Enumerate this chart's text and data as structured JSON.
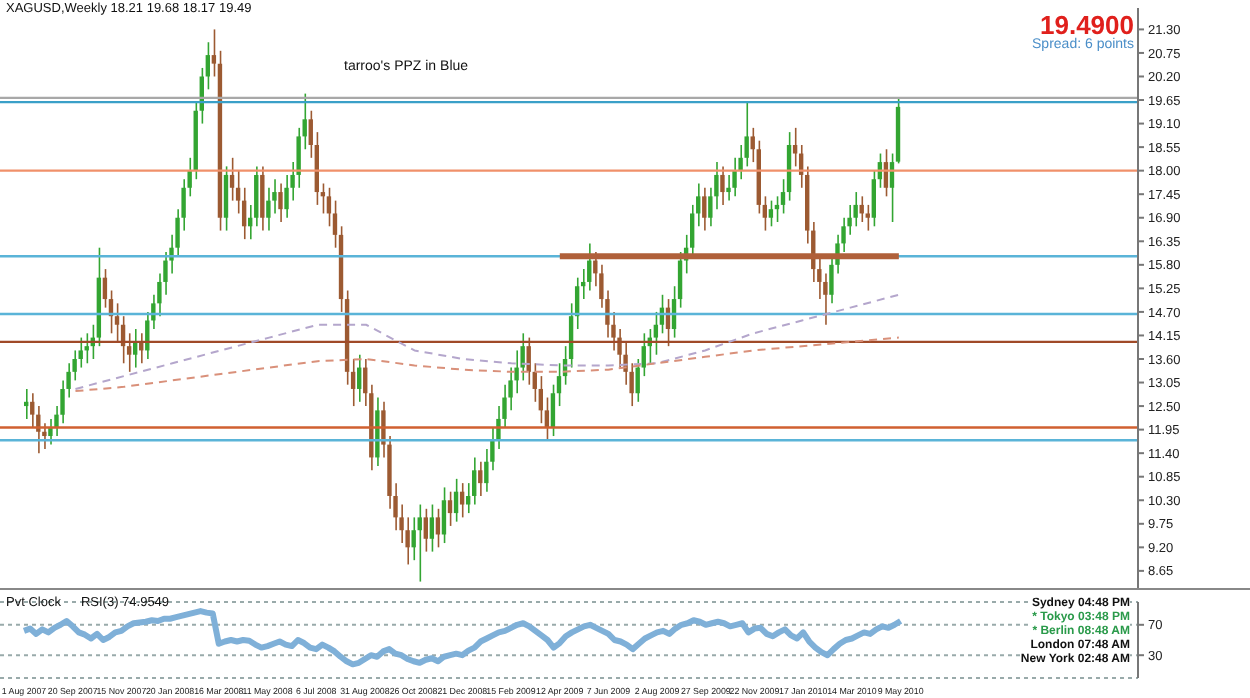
{
  "chart_data": [
    {
      "type": "candlestick",
      "title": "XAGUSD,Weekly  18.21 19.68 18.17 19.49",
      "tick_labels": "y",
      "annotations": [
        "tarroo's PPZ in Blue",
        "19.4900",
        "Spread: 6 points"
      ],
      "categories": [
        "1 Aug 2007",
        null,
        null,
        null,
        null,
        null,
        null,
        null,
        "20 Sep 2007",
        null,
        null,
        null,
        null,
        null,
        null,
        null,
        "15 Nov 2007",
        null,
        null,
        null,
        null,
        null,
        null,
        null,
        "20 Jan 2008",
        null,
        null,
        null,
        null,
        null,
        null,
        null,
        "16 Mar 2008",
        null,
        null,
        null,
        null,
        null,
        null,
        null,
        "11 May 2008",
        null,
        null,
        null,
        null,
        null,
        null,
        null,
        "6 Jul 2008",
        null,
        null,
        null,
        null,
        null,
        null,
        null,
        "31 Aug 2008",
        null,
        null,
        null,
        null,
        null,
        null,
        null,
        "26 Oct 2008",
        null,
        null,
        null,
        null,
        null,
        null,
        null,
        "21 Dec 2008",
        null,
        null,
        null,
        null,
        null,
        null,
        null,
        "15 Feb 2009",
        null,
        null,
        null,
        null,
        null,
        null,
        null,
        "12 Apr 2009",
        null,
        null,
        null,
        null,
        null,
        null,
        null,
        "7 Jun 2009",
        null,
        null,
        null,
        null,
        null,
        null,
        null,
        "2 Aug 2009",
        null,
        null,
        null,
        null,
        null,
        null,
        null,
        "27 Sep 2009",
        null,
        null,
        null,
        null,
        null,
        null,
        null,
        "22 Nov 2009",
        null,
        null,
        null,
        null,
        null,
        null,
        null,
        "17 Jan 2010",
        null,
        null,
        null,
        null,
        null,
        null,
        null,
        "14 Mar 2010",
        null,
        null,
        null,
        null,
        null,
        null,
        null,
        "9 May 2010",
        null,
        null,
        null,
        null,
        null,
        null,
        null,
        null,
        null,
        null,
        null,
        null,
        null,
        null,
        null,
        null,
        null,
        null,
        null,
        null,
        null,
        null,
        null,
        null,
        null,
        null,
        null,
        null,
        null,
        null,
        null,
        null,
        null,
        null,
        null,
        null,
        null,
        null,
        null
      ],
      "ohlc": [
        [
          12.5,
          12.9,
          12.2,
          12.6
        ],
        [
          12.6,
          12.8,
          12.0,
          12.3
        ],
        [
          12.3,
          12.5,
          11.4,
          11.9
        ],
        [
          11.9,
          12.1,
          11.5,
          11.8
        ],
        [
          11.8,
          12.2,
          11.6,
          12.0
        ],
        [
          12.0,
          12.5,
          11.8,
          12.3
        ],
        [
          12.3,
          13.1,
          12.1,
          12.9
        ],
        [
          12.9,
          13.5,
          12.7,
          13.3
        ],
        [
          13.3,
          13.8,
          13.1,
          13.6
        ],
        [
          13.6,
          14.1,
          13.4,
          13.8
        ],
        [
          13.8,
          14.2,
          13.5,
          13.9
        ],
        [
          13.9,
          14.4,
          13.6,
          14.1
        ],
        [
          14.1,
          16.2,
          13.9,
          15.5
        ],
        [
          15.5,
          15.7,
          14.8,
          15.0
        ],
        [
          15.0,
          15.2,
          14.2,
          14.6
        ],
        [
          14.6,
          14.9,
          14.0,
          14.4
        ],
        [
          14.4,
          14.6,
          13.5,
          13.9
        ],
        [
          13.9,
          14.2,
          13.3,
          13.7
        ],
        [
          13.7,
          14.3,
          13.4,
          14.0
        ],
        [
          14.0,
          14.2,
          13.5,
          13.8
        ],
        [
          13.8,
          14.7,
          13.6,
          14.5
        ],
        [
          14.5,
          15.1,
          14.3,
          14.9
        ],
        [
          14.9,
          15.6,
          14.6,
          15.4
        ],
        [
          15.4,
          16.1,
          15.1,
          15.9
        ],
        [
          15.9,
          16.5,
          15.6,
          16.2
        ],
        [
          16.2,
          17.1,
          16.0,
          16.9
        ],
        [
          16.9,
          17.8,
          16.6,
          17.6
        ],
        [
          17.6,
          18.3,
          17.4,
          18.0
        ],
        [
          18.0,
          19.6,
          17.8,
          19.4
        ],
        [
          19.4,
          20.4,
          19.1,
          20.2
        ],
        [
          20.2,
          21.0,
          19.9,
          20.7
        ],
        [
          20.7,
          21.3,
          20.2,
          20.5
        ],
        [
          20.5,
          20.8,
          16.6,
          16.9
        ],
        [
          16.9,
          18.1,
          16.6,
          17.9
        ],
        [
          17.9,
          18.3,
          17.3,
          17.6
        ],
        [
          17.6,
          18.0,
          17.0,
          17.3
        ],
        [
          17.3,
          17.6,
          16.4,
          16.7
        ],
        [
          16.7,
          17.2,
          16.4,
          16.9
        ],
        [
          16.9,
          18.1,
          16.7,
          17.9
        ],
        [
          17.9,
          18.1,
          16.6,
          16.9
        ],
        [
          16.9,
          17.6,
          16.6,
          17.3
        ],
        [
          17.3,
          17.8,
          17.0,
          17.5
        ],
        [
          17.5,
          17.7,
          16.8,
          17.1
        ],
        [
          17.1,
          17.9,
          16.9,
          17.6
        ],
        [
          17.6,
          18.2,
          17.3,
          17.9
        ],
        [
          17.9,
          19.0,
          17.6,
          18.8
        ],
        [
          18.8,
          19.8,
          18.5,
          19.2
        ],
        [
          19.2,
          19.4,
          18.3,
          18.6
        ],
        [
          18.6,
          18.9,
          17.2,
          17.5
        ],
        [
          17.5,
          17.7,
          17.0,
          17.4
        ],
        [
          17.4,
          17.6,
          16.7,
          17.0
        ],
        [
          17.0,
          17.3,
          16.2,
          16.5
        ],
        [
          16.5,
          16.7,
          14.7,
          15.0
        ],
        [
          15.0,
          15.2,
          13.0,
          13.3
        ],
        [
          13.3,
          13.6,
          12.5,
          12.9
        ],
        [
          12.9,
          13.7,
          12.6,
          13.4
        ],
        [
          13.4,
          13.6,
          12.5,
          12.8
        ],
        [
          12.8,
          13.0,
          11.0,
          11.3
        ],
        [
          11.3,
          12.7,
          11.1,
          12.4
        ],
        [
          12.4,
          12.6,
          11.3,
          11.6
        ],
        [
          11.6,
          11.8,
          10.1,
          10.4
        ],
        [
          10.4,
          10.7,
          9.6,
          9.9
        ],
        [
          9.9,
          10.2,
          9.3,
          9.6
        ],
        [
          9.6,
          9.9,
          8.8,
          9.2
        ],
        [
          9.2,
          9.9,
          8.9,
          9.6
        ],
        [
          9.6,
          10.2,
          8.4,
          9.9
        ],
        [
          9.9,
          10.1,
          9.1,
          9.4
        ],
        [
          9.4,
          10.2,
          9.1,
          9.9
        ],
        [
          9.9,
          10.1,
          9.2,
          9.5
        ],
        [
          9.5,
          10.6,
          9.3,
          10.3
        ],
        [
          10.3,
          10.5,
          9.7,
          10.0
        ],
        [
          10.0,
          10.8,
          9.8,
          10.5
        ],
        [
          10.5,
          10.7,
          9.9,
          10.2
        ],
        [
          10.2,
          10.7,
          10.0,
          10.4
        ],
        [
          10.4,
          11.3,
          10.2,
          11.0
        ],
        [
          11.0,
          11.2,
          10.4,
          10.7
        ],
        [
          10.7,
          11.5,
          10.5,
          11.2
        ],
        [
          11.2,
          12.0,
          11.0,
          11.7
        ],
        [
          11.7,
          12.5,
          11.5,
          12.2
        ],
        [
          12.2,
          13.0,
          12.0,
          12.7
        ],
        [
          12.7,
          13.4,
          12.4,
          13.1
        ],
        [
          13.1,
          13.8,
          12.8,
          13.4
        ],
        [
          13.4,
          14.2,
          13.1,
          13.9
        ],
        [
          13.9,
          14.1,
          13.0,
          13.3
        ],
        [
          13.3,
          13.5,
          12.6,
          12.9
        ],
        [
          12.9,
          13.2,
          12.1,
          12.4
        ],
        [
          12.4,
          12.7,
          11.7,
          12.0
        ],
        [
          12.0,
          13.0,
          11.8,
          12.8
        ],
        [
          12.8,
          13.5,
          12.5,
          13.2
        ],
        [
          13.2,
          13.9,
          13.0,
          13.6
        ],
        [
          13.6,
          14.9,
          13.4,
          14.6
        ],
        [
          14.6,
          15.5,
          14.3,
          15.3
        ],
        [
          15.3,
          15.7,
          15.0,
          15.4
        ],
        [
          15.4,
          16.3,
          15.2,
          15.9
        ],
        [
          15.9,
          16.1,
          15.3,
          15.6
        ],
        [
          15.6,
          15.8,
          14.8,
          15.0
        ],
        [
          15.0,
          15.2,
          14.1,
          14.4
        ],
        [
          14.4,
          14.7,
          13.8,
          14.1
        ],
        [
          14.1,
          14.3,
          13.4,
          13.7
        ],
        [
          13.7,
          14.0,
          13.0,
          13.3
        ],
        [
          13.3,
          13.5,
          12.5,
          12.8
        ],
        [
          12.8,
          13.6,
          12.6,
          13.4
        ],
        [
          13.4,
          14.2,
          13.2,
          13.9
        ],
        [
          13.9,
          14.3,
          13.5,
          14.1
        ],
        [
          14.1,
          14.7,
          13.7,
          14.4
        ],
        [
          14.4,
          15.1,
          14.2,
          14.8
        ],
        [
          14.8,
          15.0,
          13.9,
          14.3
        ],
        [
          14.3,
          15.3,
          14.1,
          15.0
        ],
        [
          15.0,
          16.1,
          14.8,
          15.9
        ],
        [
          15.9,
          16.5,
          15.6,
          16.2
        ],
        [
          16.2,
          17.2,
          16.0,
          17.0
        ],
        [
          17.0,
          17.7,
          16.7,
          17.4
        ],
        [
          17.4,
          17.6,
          16.6,
          16.9
        ],
        [
          16.9,
          17.6,
          16.7,
          17.4
        ],
        [
          17.4,
          18.2,
          17.1,
          17.9
        ],
        [
          17.9,
          18.1,
          17.2,
          17.5
        ],
        [
          17.5,
          17.9,
          17.3,
          17.6
        ],
        [
          17.6,
          18.3,
          17.4,
          18.0
        ],
        [
          18.0,
          18.6,
          17.8,
          18.3
        ],
        [
          18.3,
          19.6,
          18.1,
          18.8
        ],
        [
          18.8,
          19.0,
          18.2,
          18.5
        ],
        [
          18.5,
          18.7,
          17.0,
          17.2
        ],
        [
          17.2,
          17.4,
          16.6,
          16.9
        ],
        [
          16.9,
          17.3,
          16.7,
          17.1
        ],
        [
          17.1,
          17.4,
          16.8,
          17.2
        ],
        [
          17.2,
          17.8,
          17.0,
          17.5
        ],
        [
          17.5,
          18.9,
          17.3,
          18.6
        ],
        [
          18.6,
          19.0,
          18.1,
          18.4
        ],
        [
          18.4,
          18.6,
          17.6,
          17.9
        ],
        [
          17.9,
          18.1,
          16.3,
          16.6
        ],
        [
          16.6,
          16.8,
          15.4,
          15.7
        ],
        [
          15.7,
          16.0,
          15.0,
          15.4
        ],
        [
          15.4,
          15.6,
          14.4,
          15.1
        ],
        [
          15.1,
          16.0,
          14.9,
          15.8
        ],
        [
          15.8,
          16.5,
          15.6,
          16.3
        ],
        [
          16.3,
          16.9,
          16.1,
          16.7
        ],
        [
          16.7,
          17.2,
          16.5,
          16.9
        ],
        [
          16.9,
          17.5,
          16.7,
          17.2
        ],
        [
          17.2,
          17.4,
          16.8,
          17.0
        ],
        [
          17.0,
          17.2,
          16.6,
          16.9
        ],
        [
          16.9,
          18.0,
          16.7,
          17.8
        ],
        [
          17.8,
          18.4,
          17.6,
          18.2
        ],
        [
          18.2,
          18.5,
          17.4,
          17.6
        ],
        [
          17.6,
          18.4,
          16.8,
          18.2
        ],
        [
          18.21,
          19.68,
          18.17,
          19.49
        ],
        null,
        null,
        null,
        null,
        null,
        null,
        null,
        null,
        null,
        null,
        null,
        null,
        null,
        null,
        null,
        null,
        null,
        null,
        null,
        null,
        null,
        null,
        null,
        null,
        null,
        null,
        null,
        null,
        null,
        null,
        null,
        null,
        null,
        null,
        null,
        null,
        null,
        null,
        null
      ],
      "colors": [
        "#33a532",
        "#9c5a32",
        "#9c5a32",
        "#9c5a32",
        "#33a532",
        "#33a532",
        "#33a532",
        "#33a532",
        "#33a532",
        "#33a532",
        "#33a532",
        "#33a532",
        "#33a532",
        "#9c5a32",
        "#9c5a32",
        "#9c5a32",
        "#9c5a32",
        "#9c5a32",
        "#33a532",
        "#9c5a32",
        "#33a532",
        "#33a532",
        "#33a532",
        "#33a532",
        "#33a532",
        "#33a532",
        "#33a532",
        "#33a532",
        "#33a532",
        "#33a532",
        "#33a532",
        "#9c5a32",
        "#9c5a32",
        "#33a532",
        "#9c5a32",
        "#9c5a32",
        "#9c5a32",
        "#33a532",
        "#33a532",
        "#9c5a32",
        "#33a532",
        "#33a532",
        "#9c5a32",
        "#33a532",
        "#33a532",
        "#33a532",
        "#33a532",
        "#9c5a32",
        "#9c5a32",
        "#9c5a32",
        "#9c5a32",
        "#9c5a32",
        "#9c5a32",
        "#9c5a32",
        "#9c5a32",
        "#33a532",
        "#9c5a32",
        "#9c5a32",
        "#33a532",
        "#9c5a32",
        "#9c5a32",
        "#9c5a32",
        "#9c5a32",
        "#9c5a32",
        "#33a532",
        "#33a532",
        "#9c5a32",
        "#33a532",
        "#9c5a32",
        "#33a532",
        "#9c5a32",
        "#33a532",
        "#9c5a32",
        "#33a532",
        "#33a532",
        "#9c5a32",
        "#33a532",
        "#33a532",
        "#33a532",
        "#33a532",
        "#33a532",
        "#33a532",
        "#33a532",
        "#9c5a32",
        "#9c5a32",
        "#9c5a32",
        "#9c5a32",
        "#33a532",
        "#33a532",
        "#33a532",
        "#33a532",
        "#33a532",
        "#33a532",
        "#33a532",
        "#9c5a32",
        "#9c5a32",
        "#9c5a32",
        "#9c5a32",
        "#9c5a32",
        "#9c5a32",
        "#9c5a32",
        "#33a532",
        "#33a532",
        "#33a532",
        "#33a532",
        "#33a532",
        "#9c5a32",
        "#33a532",
        "#33a532",
        "#33a532",
        "#33a532",
        "#33a532",
        "#9c5a32",
        "#33a532",
        "#33a532",
        "#9c5a32",
        "#33a532",
        "#33a532",
        "#33a532",
        "#33a532",
        "#9c5a32",
        "#9c5a32",
        "#9c5a32",
        "#33a532",
        "#33a532",
        "#33a532",
        "#33a532",
        "#9c5a32",
        "#9c5a32",
        "#9c5a32",
        "#9c5a32",
        "#9c5a32",
        "#9c5a32",
        "#33a532",
        "#33a532",
        "#33a532",
        "#33a532",
        "#33a532",
        "#9c5a32",
        "#9c5a32",
        "#33a532",
        "#33a532",
        "#9c5a32",
        "#33a532",
        "#33a532",
        null,
        null,
        null,
        null,
        null,
        null,
        null,
        null,
        null,
        null,
        null,
        null,
        null,
        null,
        null,
        null,
        null,
        null,
        null,
        null,
        null,
        null,
        null,
        null,
        null,
        null,
        null,
        null,
        null,
        null,
        null,
        null,
        null,
        null,
        null,
        null,
        null,
        null,
        null
      ],
      "series": [
        {
          "type": "line",
          "color": "#b4a6cc",
          "line_style": "dashed",
          "x": [
            "20 Sep 2007",
            "15 Nov 2007",
            "20 Jan 2008",
            "16 Mar 2008",
            "11 May 2008",
            "6 Jul 2008",
            "31 Aug 2008",
            "26 Oct 2008",
            "21 Dec 2008",
            "15 Feb 2009",
            "12 Apr 2009",
            "7 Jun 2009",
            "2 Aug 2009",
            "27 Sep 2009",
            "22 Nov 2009",
            "17 Jan 2010",
            "14 Mar 2010",
            "9 May 2010"
          ],
          "values": [
            12.9,
            13.2,
            13.5,
            13.8,
            14.1,
            14.4,
            14.4,
            13.8,
            13.6,
            13.5,
            13.45,
            13.45,
            13.5,
            13.8,
            14.2,
            14.5,
            14.8,
            15.1
          ]
        },
        {
          "type": "line",
          "color": "#d9907a",
          "line_style": "dashed",
          "x": [
            "20 Sep 2007",
            "15 Nov 2007",
            "20 Jan 2008",
            "16 Mar 2008",
            "11 May 2008",
            "6 Jul 2008",
            "31 Aug 2008",
            "26 Oct 2008",
            "21 Dec 2008",
            "15 Feb 2009",
            "12 Apr 2009",
            "7 Jun 2009",
            "2 Aug 2009",
            "27 Sep 2009",
            "22 Nov 2009",
            "17 Jan 2010",
            "14 Mar 2010",
            "9 May 2010"
          ],
          "values": [
            12.85,
            12.95,
            13.1,
            13.25,
            13.4,
            13.55,
            13.6,
            13.45,
            13.35,
            13.3,
            13.3,
            13.35,
            13.5,
            13.65,
            13.8,
            13.9,
            14.0,
            14.1
          ]
        },
        {
          "type": "line",
          "color": "#b0603a",
          "line_style": "solid",
          "x": [
            "12 Apr 2009",
            "9 May 2010"
          ],
          "values": [
            16.0,
            16.0
          ]
        }
      ],
      "ref_lines": [
        {
          "axis": "y",
          "value": 19.7,
          "color": "#a8a8a8"
        },
        {
          "axis": "y",
          "value": 19.6,
          "color": "#3aa0c8"
        },
        {
          "axis": "y",
          "value": 18.0,
          "color": "#f0906a"
        },
        {
          "axis": "y",
          "value": 16.0,
          "color": "#5ab4d8"
        },
        {
          "axis": "y",
          "value": 14.65,
          "color": "#5ab4d8"
        },
        {
          "axis": "y",
          "value": 14.0,
          "color": "#a04a28"
        },
        {
          "axis": "y",
          "value": 12.0,
          "color": "#d06030"
        },
        {
          "axis": "y",
          "value": 11.7,
          "color": "#5ab4d8"
        }
      ],
      "ylim": [
        8.25,
        21.8
      ],
      "yticks": [
        {
          "value": 8.65,
          "label": "8.65"
        },
        {
          "value": 9.2,
          "label": "9.20"
        },
        {
          "value": 9.75,
          "label": "9.75"
        },
        {
          "value": 10.3,
          "label": "10.30"
        },
        {
          "value": 10.85,
          "label": "10.85"
        },
        {
          "value": 11.4,
          "label": "11.40"
        },
        {
          "value": 11.95,
          "label": "11.95"
        },
        {
          "value": 12.5,
          "label": "12.50"
        },
        {
          "value": 13.05,
          "label": "13.05"
        },
        {
          "value": 13.6,
          "label": "13.60"
        },
        {
          "value": 14.15,
          "label": "14.15"
        },
        {
          "value": 14.7,
          "label": "14.70"
        },
        {
          "value": 15.25,
          "label": "15.25"
        },
        {
          "value": 15.8,
          "label": "15.80"
        },
        {
          "value": 16.35,
          "label": "16.35"
        },
        {
          "value": 16.9,
          "label": "16.90"
        },
        {
          "value": 17.45,
          "label": "17.45"
        },
        {
          "value": 18.0,
          "label": "18.00"
        },
        {
          "value": 18.55,
          "label": "18.55"
        },
        {
          "value": 19.1,
          "label": "19.10"
        },
        {
          "value": 19.65,
          "label": "19.65"
        },
        {
          "value": 20.2,
          "label": "20.20"
        },
        {
          "value": 20.75,
          "label": "20.75"
        },
        {
          "value": 21.3,
          "label": "21.30"
        }
      ]
    },
    {
      "type": "line",
      "title": "RSI(3) 74.9549",
      "annotations": [
        "Pvt Clock",
        "Sydney 04:48 PM",
        "* Tokyo 03:48 PM",
        "* Berlin 08:48 AM",
        "London 07:48 AM",
        "New York 02:48 AM"
      ],
      "categories": [
        "1 Aug 2007",
        null,
        null,
        null,
        null,
        null,
        null,
        null,
        "20 Sep 2007",
        null,
        null,
        null,
        null,
        null,
        null,
        null,
        "15 Nov 2007",
        null,
        null,
        null,
        null,
        null,
        null,
        null,
        "20 Jan 2008",
        null,
        null,
        null,
        null,
        null,
        null,
        null,
        "16 Mar 2008",
        null,
        null,
        null,
        null,
        null,
        null,
        null,
        "11 May 2008",
        null,
        null,
        null,
        null,
        null,
        null,
        null,
        "6 Jul 2008",
        null,
        null,
        null,
        null,
        null,
        null,
        null,
        "31 Aug 2008",
        null,
        null,
        null,
        null,
        null,
        null,
        null,
        "26 Oct 2008",
        null,
        null,
        null,
        null,
        null,
        null,
        null,
        "21 Dec 2008",
        null,
        null,
        null,
        null,
        null,
        null,
        null,
        "15 Feb 2009",
        null,
        null,
        null,
        null,
        null,
        null,
        null,
        "12 Apr 2009",
        null,
        null,
        null,
        null,
        null,
        null,
        null,
        "7 Jun 2009",
        null,
        null,
        null,
        null,
        null,
        null,
        null,
        "2 Aug 2009",
        null,
        null,
        null,
        null,
        null,
        null,
        null,
        "27 Sep 2009",
        null,
        null,
        null,
        null,
        null,
        null,
        null,
        "22 Nov 2009",
        null,
        null,
        null,
        null,
        null,
        null,
        null,
        "17 Jan 2010",
        null,
        null,
        null,
        null,
        null,
        null,
        null,
        "14 Mar 2010",
        null,
        null,
        null,
        null,
        null,
        null,
        null,
        "9 May 2010",
        null,
        null,
        null,
        null,
        null,
        null,
        null,
        null,
        null,
        null,
        null,
        null,
        null,
        null,
        null,
        null,
        null,
        null,
        null,
        null,
        null,
        null,
        null,
        null,
        null,
        null,
        null,
        null,
        null,
        null,
        null,
        null,
        null,
        null,
        null,
        null,
        null,
        null,
        null
      ],
      "series": [
        {
          "color": "#7fb0d8",
          "values": [
            62,
            65,
            58,
            64,
            60,
            66,
            70,
            75,
            68,
            60,
            57,
            52,
            58,
            50,
            54,
            60,
            62,
            68,
            72,
            73,
            74,
            76,
            75,
            78,
            78,
            80,
            82,
            84,
            86,
            88,
            86,
            85,
            45,
            48,
            50,
            48,
            50,
            49,
            44,
            40,
            42,
            45,
            48,
            44,
            42,
            50,
            46,
            40,
            38,
            44,
            40,
            35,
            28,
            22,
            18,
            20,
            25,
            30,
            28,
            35,
            38,
            32,
            30,
            25,
            22,
            20,
            24,
            26,
            22,
            28,
            30,
            32,
            30,
            36,
            40,
            48,
            52,
            56,
            60,
            62,
            66,
            70,
            72,
            68,
            62,
            56,
            50,
            40,
            46,
            55,
            60,
            64,
            68,
            70,
            66,
            62,
            58,
            50,
            48,
            44,
            38,
            45,
            52,
            56,
            60,
            62,
            58,
            65,
            70,
            72,
            76,
            74,
            70,
            72,
            74,
            72,
            68,
            70,
            72,
            60,
            65,
            66,
            58,
            55,
            60,
            64,
            56,
            52,
            60,
            48,
            40,
            34,
            30,
            38,
            45,
            50,
            52,
            56,
            60,
            58,
            64,
            68,
            66,
            70,
            74.9549,
            null,
            null,
            null,
            null,
            null,
            null,
            null,
            null,
            null,
            null,
            null,
            null,
            null,
            null,
            null,
            null,
            null,
            null,
            null,
            null,
            null,
            null,
            null,
            null,
            null,
            null,
            null,
            null,
            null,
            null,
            null,
            null,
            null,
            null,
            null,
            null,
            null,
            null,
            null
          ]
        }
      ],
      "ylim": [
        0,
        100
      ],
      "yticks": [
        30,
        70
      ],
      "grid": "y"
    }
  ]
}
